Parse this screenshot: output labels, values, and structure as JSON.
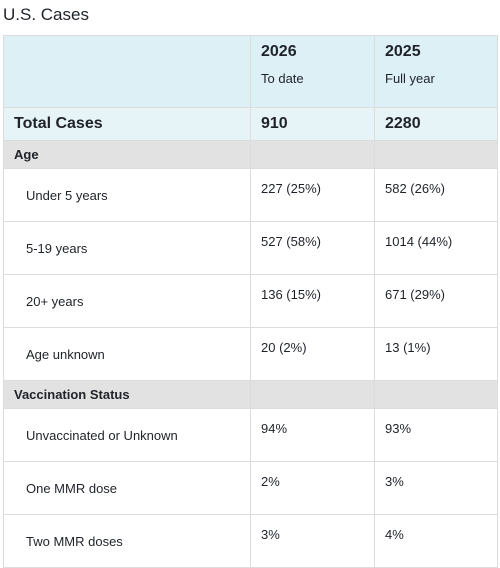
{
  "header": {
    "title": "U.S. Cases"
  },
  "table": {
    "columns": [
      {
        "year": "2026",
        "period": "To date"
      },
      {
        "year": "2025",
        "period": "Full year"
      }
    ],
    "total": {
      "label": "Total Cases",
      "values": [
        910,
        2280
      ]
    },
    "sections": [
      {
        "label": "Age",
        "rows": [
          {
            "label": "Under 5 years",
            "values": [
              "227 (25%)",
              "582 (26%)"
            ]
          },
          {
            "label": "5-19 years",
            "values": [
              "527 (58%)",
              "1014 (44%)"
            ]
          },
          {
            "label": "20+ years",
            "values": [
              "136 (15%)",
              "671 (29%)"
            ]
          },
          {
            "label": "Age unknown",
            "values": [
              "20 (2%)",
              "13 (1%)"
            ]
          }
        ]
      },
      {
        "label": "Vaccination Status",
        "rows": [
          {
            "label": "Unvaccinated or Unknown",
            "values": [
              "94%",
              "93%"
            ]
          },
          {
            "label": "One MMR dose",
            "values": [
              "2%",
              "3%"
            ]
          },
          {
            "label": "Two MMR doses",
            "values": [
              "3%",
              "4%"
            ]
          }
        ]
      }
    ]
  }
}
